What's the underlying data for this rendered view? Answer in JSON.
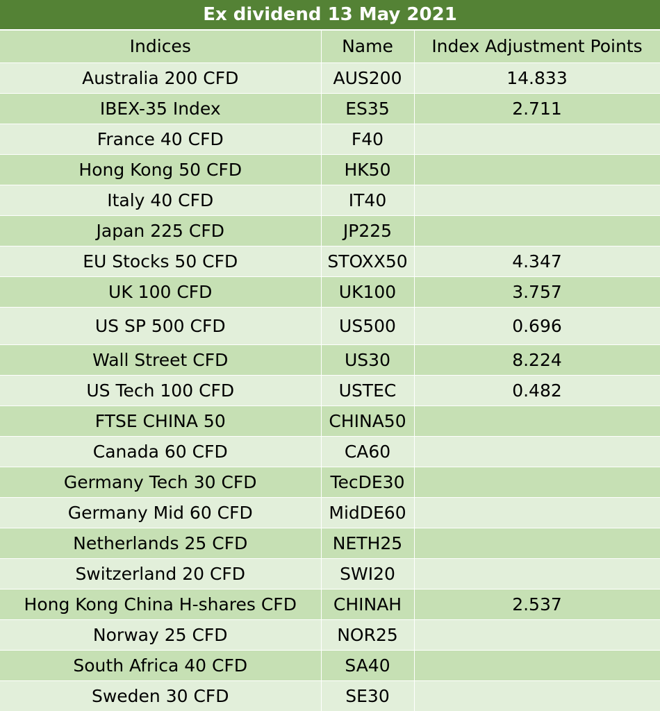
{
  "title": "Ex dividend 13 May 2021",
  "headers": {
    "indices": "Indices",
    "name": "Name",
    "points": "Index Adjustment Points"
  },
  "rows": [
    {
      "index": "Australia 200 CFD",
      "name": "AUS200",
      "points": "14.833"
    },
    {
      "index": "IBEX-35 Index",
      "name": "ES35",
      "points": "2.711"
    },
    {
      "index": "France 40 CFD",
      "name": "F40",
      "points": ""
    },
    {
      "index": "Hong Kong 50 CFD",
      "name": "HK50",
      "points": ""
    },
    {
      "index": "Italy 40 CFD",
      "name": "IT40",
      "points": ""
    },
    {
      "index": "Japan 225 CFD",
      "name": "JP225",
      "points": ""
    },
    {
      "index": "EU Stocks 50 CFD",
      "name": "STOXX50",
      "points": "4.347"
    },
    {
      "index": "UK 100 CFD",
      "name": "UK100",
      "points": "3.757"
    },
    {
      "index": "US SP 500 CFD",
      "name": "US500",
      "points": "0.696"
    },
    {
      "index": "Wall Street CFD",
      "name": "US30",
      "points": "8.224"
    },
    {
      "index": "US Tech 100 CFD",
      "name": "USTEC",
      "points": "0.482"
    },
    {
      "index": "FTSE CHINA 50",
      "name": "CHINA50",
      "points": ""
    },
    {
      "index": "Canada 60 CFD",
      "name": "CA60",
      "points": ""
    },
    {
      "index": "Germany Tech 30 CFD",
      "name": "TecDE30",
      "points": ""
    },
    {
      "index": "Germany Mid 60 CFD",
      "name": "MidDE60",
      "points": ""
    },
    {
      "index": "Netherlands 25 CFD",
      "name": "NETH25",
      "points": ""
    },
    {
      "index": "Switzerland 20 CFD",
      "name": "SWI20",
      "points": ""
    },
    {
      "index": "Hong Kong China H-shares CFD",
      "name": "CHINAH",
      "points": "2.537"
    },
    {
      "index": "Norway 25 CFD",
      "name": "NOR25",
      "points": ""
    },
    {
      "index": "South Africa 40 CFD",
      "name": "SA40",
      "points": ""
    },
    {
      "index": "Sweden 30 CFD",
      "name": "SE30",
      "points": ""
    }
  ],
  "colors": {
    "title_bg": "#548235",
    "row_dark": "#c6e0b4",
    "row_light": "#e2efda"
  }
}
